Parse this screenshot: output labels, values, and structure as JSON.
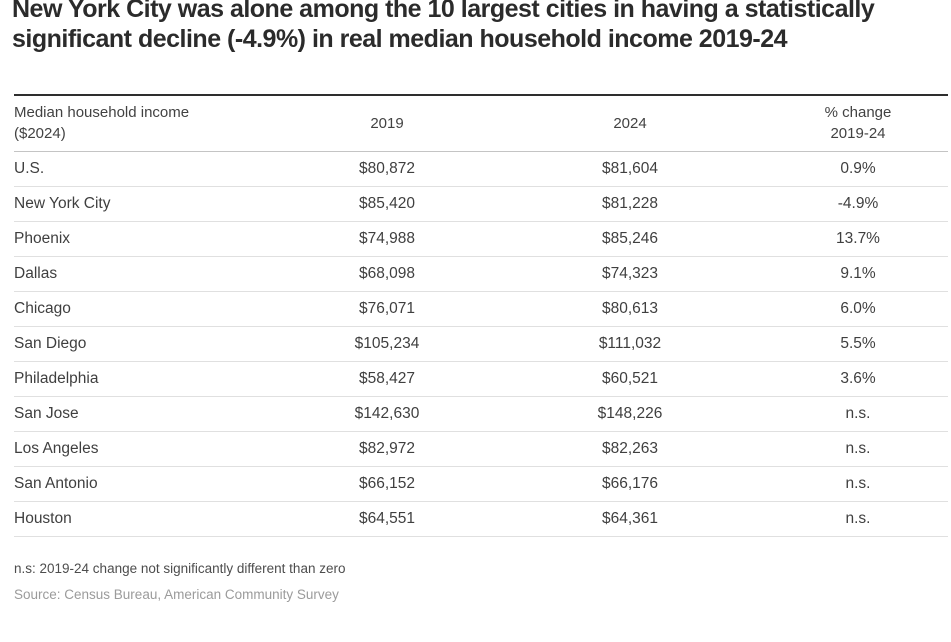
{
  "page": {
    "title": "New York City was alone among the 10 largest cities in having a statistically significant decline (-4.9%) in real median household income 2019-24"
  },
  "table_header": {
    "col1_line1": "Median household income",
    "col1_line2": "($2024)",
    "col2": "2019",
    "col3": "2024",
    "col4_line1": "% change",
    "col4_line2": "2019-24"
  },
  "chart_data": {
    "type": "table",
    "title": "New York City was alone among the 10 largest cities in having a statistically significant decline (-4.9%) in real median household income 2019-24",
    "columns": [
      "Median household income ($2024)",
      "2019",
      "2024",
      "% change 2019-24"
    ],
    "rows": [
      {
        "city": "U.S.",
        "y2019": "$80,872",
        "y2024": "$81,604",
        "change": "0.9%"
      },
      {
        "city": "New York City",
        "y2019": "$85,420",
        "y2024": "$81,228",
        "change": "-4.9%"
      },
      {
        "city": "Phoenix",
        "y2019": "$74,988",
        "y2024": "$85,246",
        "change": "13.7%"
      },
      {
        "city": "Dallas",
        "y2019": "$68,098",
        "y2024": "$74,323",
        "change": "9.1%"
      },
      {
        "city": "Chicago",
        "y2019": "$76,071",
        "y2024": "$80,613",
        "change": "6.0%"
      },
      {
        "city": "San Diego",
        "y2019": "$105,234",
        "y2024": "$111,032",
        "change": "5.5%"
      },
      {
        "city": "Philadelphia",
        "y2019": "$58,427",
        "y2024": "$60,521",
        "change": "3.6%"
      },
      {
        "city": "San Jose",
        "y2019": "$142,630",
        "y2024": "$148,226",
        "change": "n.s."
      },
      {
        "city": "Los Angeles",
        "y2019": "$82,972",
        "y2024": "$82,263",
        "change": "n.s."
      },
      {
        "city": "San Antonio",
        "y2019": "$66,152",
        "y2024": "$66,176",
        "change": "n.s."
      },
      {
        "city": "Houston",
        "y2019": "$64,551",
        "y2024": "$64,361",
        "change": "n.s."
      }
    ],
    "footnote": "n.s: 2019-24 change not significantly different than zero",
    "source": "Source: Census Bureau, American Community Survey"
  },
  "colors": {
    "title_text": "#2b2b2b",
    "body_text": "#3f3f3f",
    "header_text": "#424242",
    "footnote_text": "#4d4d4d",
    "source_text": "#9b9b9b",
    "top_rule": "#2e2e2e",
    "header_rule": "#c4c4c4",
    "row_rule": "#e0e0e0",
    "background": "#ffffff"
  }
}
